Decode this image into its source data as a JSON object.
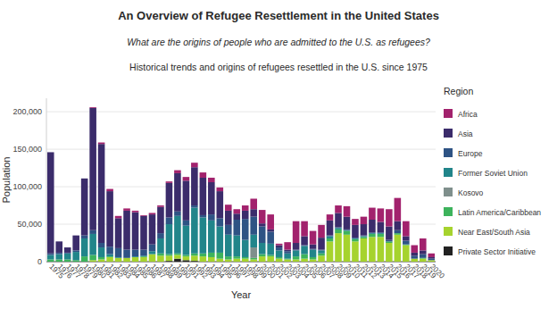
{
  "chart_data": {
    "type": "bar",
    "title": "An Overview of Refugee Resettlement in the United States",
    "subtitle": "What are the origins of people who are admitted to the U.S. as refugees?",
    "annotations": [
      "Historical trends and origins of refugees resettled in the U.S. since 1975"
    ],
    "x_label": "Year",
    "y_label": "Population",
    "legend_title": "Region",
    "legend": "right",
    "stacked": true,
    "grid": true,
    "categories": [
      "1975",
      "1976",
      "1977",
      "1978",
      "1979",
      "1980",
      "1981",
      "1982",
      "1983",
      "1984",
      "1985",
      "1986",
      "1987",
      "1988",
      "1989",
      "1990",
      "1991",
      "1992",
      "1993",
      "1994",
      "1995",
      "1996",
      "1997",
      "1998",
      "1999",
      "2000",
      "2001",
      "2002",
      "2003",
      "2004",
      "2005",
      "2006",
      "2007",
      "2008",
      "2009",
      "2010",
      "2011",
      "2012",
      "2013",
      "2014",
      "2015",
      "2016",
      "2017",
      "2018",
      "2019",
      "2020"
    ],
    "ylim": [
      0,
      218000
    ],
    "yticks": [
      0,
      {
        "value": 50000,
        "label": "50,000"
      },
      {
        "value": 100000,
        "label": "100,000"
      },
      {
        "value": 150000,
        "label": "150,000"
      },
      {
        "value": 200000,
        "label": "200,000"
      }
    ],
    "series": [
      {
        "name": "Africa",
        "color": "#a2226d",
        "values": [
          0,
          0,
          0,
          0,
          0,
          1000,
          2000,
          3000,
          3000,
          3000,
          2000,
          1000,
          2000,
          2000,
          2000,
          4000,
          5000,
          6000,
          7000,
          6000,
          5000,
          8000,
          6000,
          7000,
          14000,
          18000,
          20000,
          2000,
          10000,
          29000,
          20000,
          18000,
          17000,
          8000,
          10000,
          14000,
          8000,
          10000,
          16000,
          18000,
          23000,
          31000,
          20000,
          10000,
          16000,
          5000
        ]
      },
      {
        "name": "Asia",
        "color": "#3b2c6b",
        "values": [
          135000,
          15000,
          7000,
          20000,
          76000,
          163000,
          132000,
          74000,
          40000,
          52000,
          50000,
          45000,
          40000,
          35000,
          46000,
          51000,
          53000,
          51000,
          50000,
          43000,
          36000,
          19000,
          8000,
          11000,
          10000,
          4000,
          3000,
          3000,
          2000,
          9000,
          12000,
          6000,
          16000,
          20000,
          19000,
          17000,
          17000,
          15000,
          17000,
          14000,
          18000,
          12000,
          6000,
          4000,
          5000,
          2000
        ]
      },
      {
        "name": "Europe",
        "color": "#2e5384",
        "values": [
          2000,
          2000,
          1000,
          2000,
          4000,
          5000,
          6000,
          10000,
          12000,
          11000,
          9000,
          8000,
          9000,
          7000,
          9000,
          6000,
          7000,
          3000,
          3000,
          8000,
          11000,
          13000,
          21000,
          28000,
          24000,
          22000,
          16000,
          4000,
          3000,
          1000,
          1000,
          1000,
          1000,
          1000,
          1000,
          1000,
          1000,
          1000,
          1000,
          1000,
          2000,
          4000,
          5000,
          4000,
          5000,
          2000
        ]
      },
      {
        "name": "Former Soviet Union",
        "color": "#21858a",
        "values": [
          6000,
          7000,
          8000,
          11000,
          24000,
          28000,
          13000,
          3000,
          1000,
          0,
          1000,
          1000,
          4000,
          20000,
          40000,
          50000,
          39000,
          61000,
          48000,
          43000,
          35000,
          29000,
          28000,
          23000,
          17000,
          15000,
          15000,
          9000,
          7000,
          8000,
          11000,
          10000,
          4000,
          3000,
          2000,
          1000,
          1000,
          1000,
          1000,
          1000,
          0,
          0,
          0,
          0,
          0,
          0
        ]
      },
      {
        "name": "Kosovo",
        "color": "#7f8f8c",
        "values": [
          0,
          0,
          0,
          0,
          0,
          0,
          0,
          0,
          0,
          0,
          0,
          0,
          0,
          0,
          0,
          0,
          0,
          0,
          0,
          0,
          0,
          0,
          0,
          0,
          14000,
          0,
          0,
          0,
          0,
          0,
          0,
          0,
          0,
          0,
          0,
          0,
          0,
          0,
          0,
          0,
          0,
          0,
          0,
          0,
          0,
          0
        ]
      },
      {
        "name": "Latin America/Caribbean",
        "color": "#3db35c",
        "values": [
          3000,
          3000,
          3000,
          2000,
          7000,
          7000,
          3000,
          1000,
          0,
          0,
          0,
          1000,
          0,
          3000,
          2000,
          2000,
          2000,
          3000,
          4000,
          6000,
          8000,
          4000,
          3000,
          2000,
          2000,
          3000,
          2000,
          2000,
          1000,
          4000,
          6000,
          3000,
          3000,
          4000,
          5000,
          5000,
          3000,
          2000,
          4000,
          4000,
          2000,
          2000,
          1000,
          0,
          1000,
          0
        ]
      },
      {
        "name": "Near East/South Asia",
        "color": "#a6d32e",
        "values": [
          0,
          0,
          0,
          0,
          0,
          2000,
          3000,
          6000,
          5000,
          5000,
          6000,
          6000,
          10000,
          8000,
          7000,
          5000,
          5000,
          7000,
          7000,
          6000,
          4000,
          3000,
          4000,
          4000,
          3000,
          7000,
          7000,
          4000,
          3000,
          3000,
          4000,
          3000,
          8000,
          27000,
          38000,
          36000,
          27000,
          31000,
          33000,
          33000,
          25000,
          36000,
          22000,
          4000,
          4000,
          2000
        ]
      },
      {
        "name": "Private Sector Initiative",
        "color": "#222222",
        "values": [
          0,
          0,
          0,
          0,
          0,
          0,
          0,
          0,
          0,
          0,
          0,
          0,
          0,
          0,
          1000,
          4000,
          2000,
          1000,
          0,
          0,
          0,
          0,
          0,
          0,
          0,
          0,
          0,
          0,
          0,
          0,
          0,
          0,
          0,
          0,
          0,
          0,
          0,
          0,
          0,
          0,
          0,
          0,
          0,
          0,
          0,
          0
        ]
      }
    ]
  }
}
